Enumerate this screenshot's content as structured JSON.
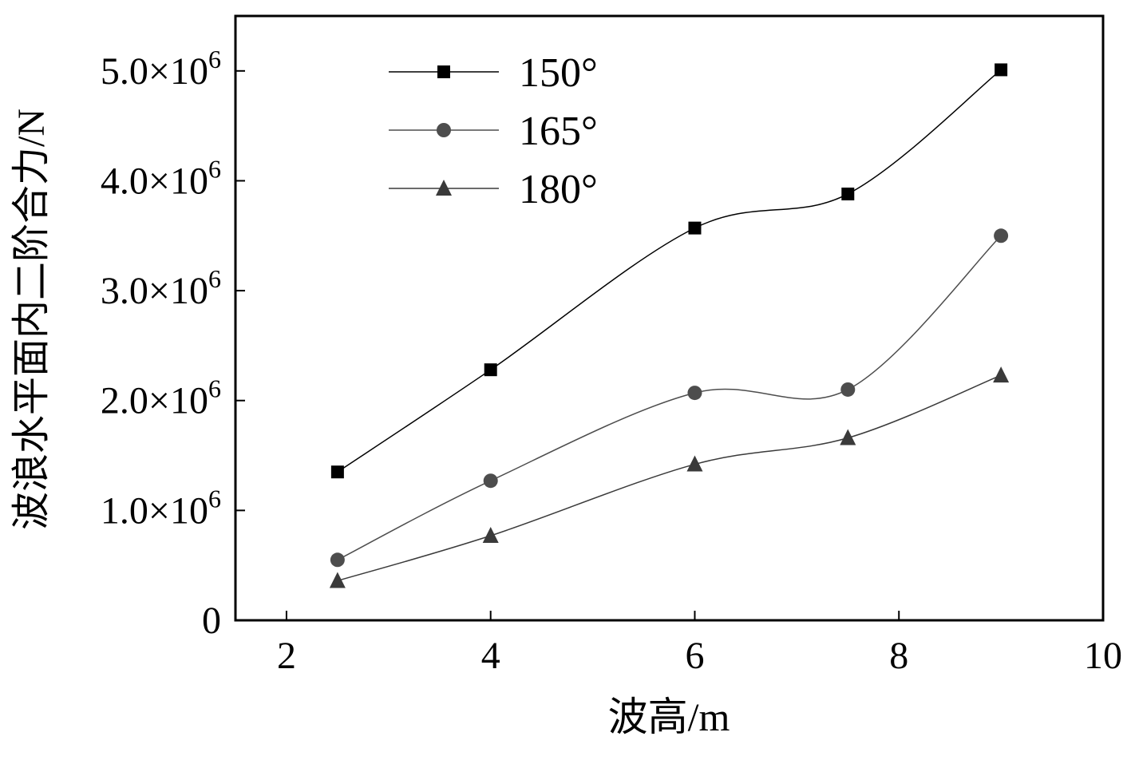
{
  "chart_data": {
    "type": "line",
    "title": "",
    "xlabel": "波高/m",
    "ylabel": "波浪水平面内二阶合力/N",
    "xlim": [
      1.5,
      10
    ],
    "ylim": [
      0,
      5.5
    ],
    "y_scale_note": "×10^6",
    "x_ticks": [
      {
        "value": 2,
        "label": "2"
      },
      {
        "value": 4,
        "label": "4"
      },
      {
        "value": 6,
        "label": "6"
      },
      {
        "value": 8,
        "label": "8"
      },
      {
        "value": 10,
        "label": "10"
      }
    ],
    "y_ticks": [
      {
        "value": 0,
        "mantissa": "0",
        "exp": ""
      },
      {
        "value": 1,
        "mantissa": "1.0×10",
        "exp": "6"
      },
      {
        "value": 2,
        "mantissa": "2.0×10",
        "exp": "6"
      },
      {
        "value": 3,
        "mantissa": "3.0×10",
        "exp": "6"
      },
      {
        "value": 4,
        "mantissa": "4.0×10",
        "exp": "6"
      },
      {
        "value": 5,
        "mantissa": "5.0×10",
        "exp": "6"
      }
    ],
    "x": [
      2.5,
      4,
      6,
      7.5,
      9
    ],
    "series": [
      {
        "name": "150°",
        "marker": "square",
        "color": "#000000",
        "values": [
          1.35,
          2.28,
          3.57,
          3.88,
          5.01
        ]
      },
      {
        "name": "165°",
        "marker": "circle",
        "color": "#4d4d4d",
        "values": [
          0.55,
          1.27,
          2.07,
          2.1,
          3.5
        ]
      },
      {
        "name": "180°",
        "marker": "triangle",
        "color": "#3a3a3a",
        "values": [
          0.36,
          0.77,
          1.42,
          1.66,
          2.23
        ]
      }
    ],
    "legend_position": "top-left",
    "grid": false
  }
}
